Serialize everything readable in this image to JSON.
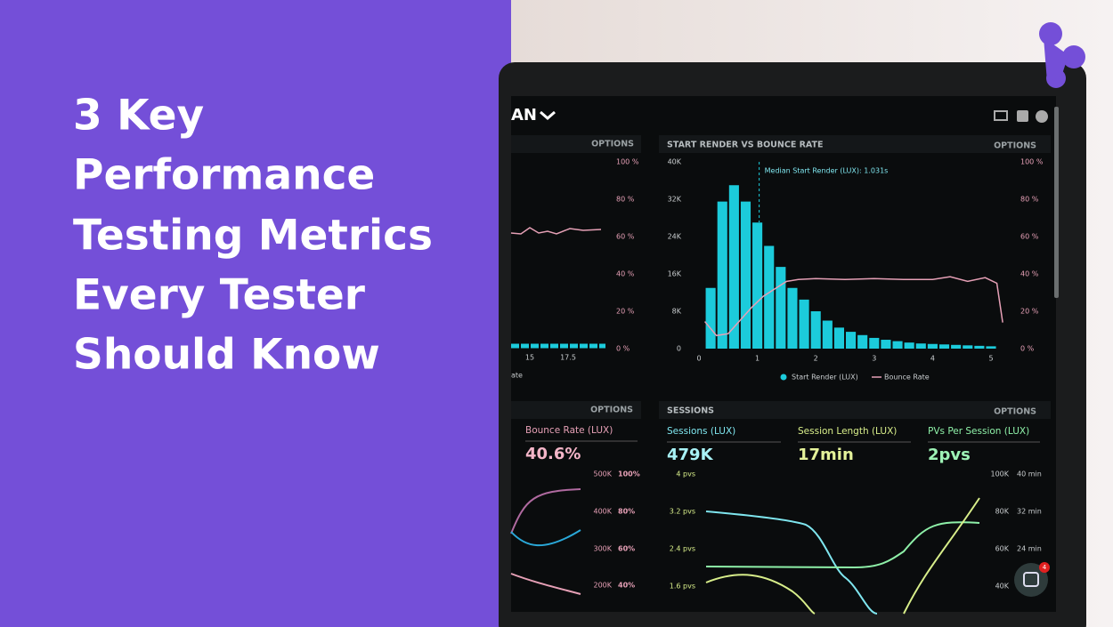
{
  "banner": {
    "title_lines": [
      "3 Key",
      "Performance",
      "Testing Metrics",
      "Every Tester",
      "Should Know"
    ]
  },
  "dashboard": {
    "header": "AN",
    "top_left_panel": {
      "options": "OPTIONS",
      "y_ticks": [
        "100 %",
        "80 %",
        "60 %",
        "40 %",
        "20 %",
        "0 %"
      ],
      "x_ticks": [
        "15",
        "17.5"
      ],
      "legend_fragment": "ate"
    },
    "bounce_panel": {
      "options": "OPTIONS",
      "metric_label": "Bounce Rate (LUX)",
      "metric_value": "40.6%",
      "left_ticks": [
        "500K",
        "400K",
        "300K",
        "200K"
      ],
      "right_ticks": [
        "100%",
        "80%",
        "60%",
        "40%"
      ]
    },
    "sessions_panel": {
      "title": "SESSIONS",
      "options": "OPTIONS",
      "metrics": [
        {
          "label": "Sessions (LUX)",
          "value": "479K"
        },
        {
          "label": "Session Length (LUX)",
          "value": "17min"
        },
        {
          "label": "PVs Per Session (LUX)",
          "value": "2pvs"
        }
      ],
      "left_ticks": [
        "4 pvs",
        "3.2 pvs",
        "2.4 pvs",
        "1.6 pvs"
      ],
      "right_ticks_count": [
        "100K",
        "80K",
        "60K",
        "40K"
      ],
      "right_ticks_time": [
        "40 min",
        "32 min",
        "24 min"
      ]
    },
    "chat_badge": "4"
  },
  "chart_data": {
    "type": "histogram",
    "title": "START RENDER VS BOUNCE RATE",
    "options": "OPTIONS",
    "bins": [
      0.1,
      0.3,
      0.5,
      0.7,
      0.9,
      1.1,
      1.3,
      1.5,
      1.7,
      1.9,
      2.1,
      2.3,
      2.5,
      2.7,
      2.9,
      3.1,
      3.3,
      3.5,
      3.7,
      3.9,
      4.1,
      4.3,
      4.5,
      4.7,
      4.9,
      5.1
    ],
    "series": [
      {
        "name": "Start Render (LUX)",
        "color": "#1ccbdb",
        "values": [
          13000,
          31500,
          35000,
          31500,
          27000,
          22000,
          17500,
          13000,
          10500,
          8000,
          6000,
          4500,
          3600,
          2900,
          2300,
          1900,
          1600,
          1300,
          1100,
          1000,
          900,
          800,
          700,
          600,
          500
        ]
      },
      {
        "name": "Bounce Rate",
        "type": "line",
        "axis": "y2",
        "color": "#e6a0b6",
        "x": [
          0.1,
          0.3,
          0.5,
          0.7,
          0.9,
          1.1,
          1.3,
          1.5,
          1.7,
          2,
          2.5,
          3,
          3.5,
          4,
          4.3,
          4.6,
          4.9,
          5.1,
          5.2
        ],
        "values": [
          14.5,
          7,
          8,
          15,
          22,
          28,
          32,
          36,
          37,
          37.5,
          37,
          37.5,
          37,
          37,
          38.5,
          36,
          38,
          35,
          14
        ]
      }
    ],
    "xlim": [
      0,
      5.2
    ],
    "xticks": [
      0,
      1,
      2,
      3,
      4,
      5
    ],
    "ylim": [
      0,
      40000
    ],
    "yticks": [
      {
        "value": 0,
        "label": "0"
      },
      {
        "value": 8000,
        "label": "8K"
      },
      {
        "value": 16000,
        "label": "16K"
      },
      {
        "value": 24000,
        "label": "24K"
      },
      {
        "value": 32000,
        "label": "32K"
      },
      {
        "value": 40000,
        "label": "40K"
      }
    ],
    "y2lim": [
      0,
      100
    ],
    "y2ticks": [
      {
        "value": 0,
        "label": "0 %"
      },
      {
        "value": 20,
        "label": "20 %"
      },
      {
        "value": 40,
        "label": "40 %"
      },
      {
        "value": 60,
        "label": "60 %"
      },
      {
        "value": 80,
        "label": "80 %"
      },
      {
        "value": 100,
        "label": "100 %"
      }
    ],
    "annotation": {
      "text": "Median Start Render (LUX): 1.031s",
      "x": 1.031
    }
  }
}
